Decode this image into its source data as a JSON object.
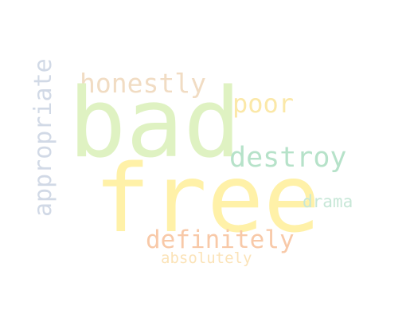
{
  "word_cloud": {
    "words": [
      {
        "text": "bad",
        "color": "#dff2c2"
      },
      {
        "text": "free",
        "color": "#fff1a8"
      },
      {
        "text": "honestly",
        "color": "#f1dcc3"
      },
      {
        "text": "poor",
        "color": "#fbe8a8"
      },
      {
        "text": "destroy",
        "color": "#b6e2c9"
      },
      {
        "text": "drama",
        "color": "#c7e7d7"
      },
      {
        "text": "definitely",
        "color": "#f8c9a8"
      },
      {
        "text": "absolutely",
        "color": "#fbe3b8"
      },
      {
        "text": "appropriate",
        "color": "#d1d9e6"
      }
    ]
  }
}
